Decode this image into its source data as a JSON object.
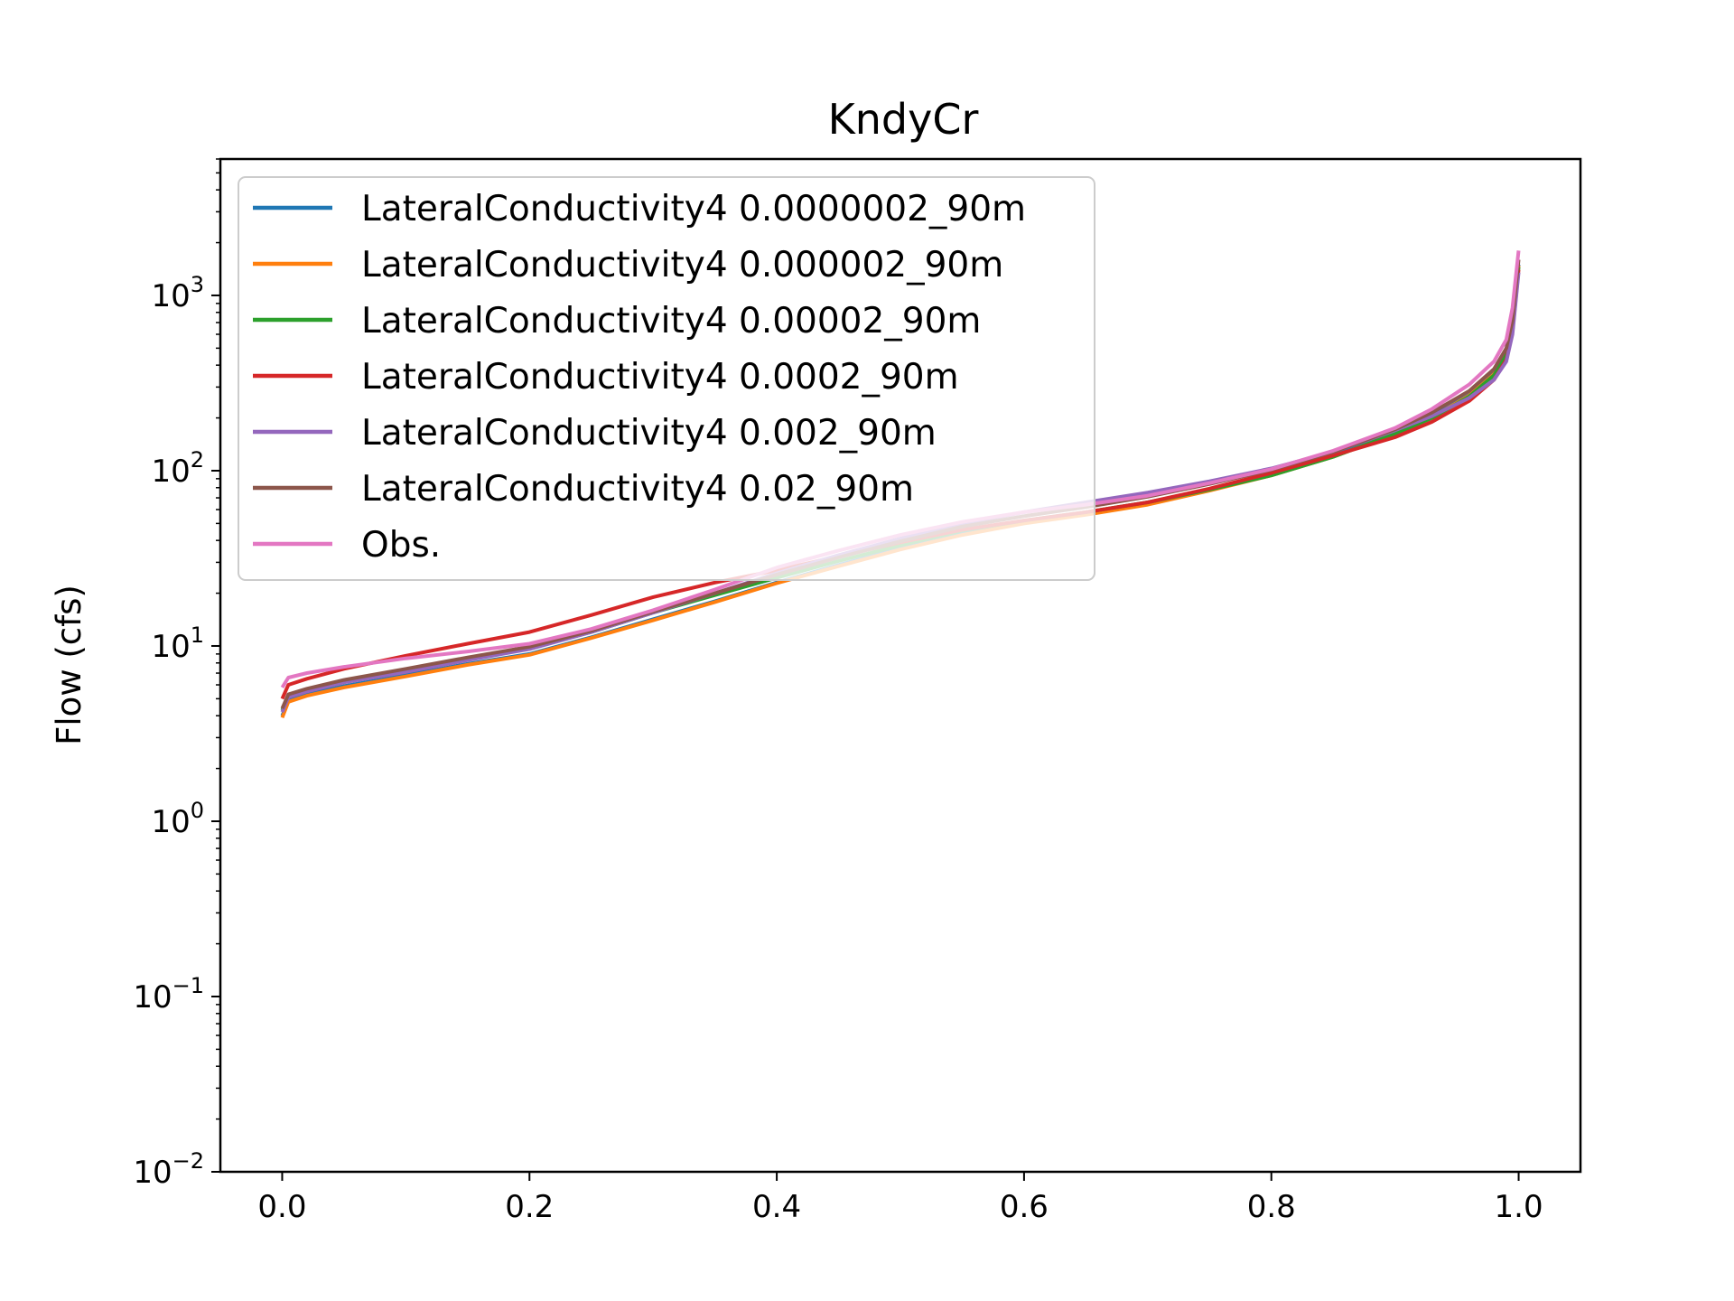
{
  "chart_data": {
    "type": "line",
    "title": "KndyCr",
    "xlabel": "",
    "ylabel": "Flow (cfs)",
    "xlim": [
      -0.05,
      1.05
    ],
    "ylim": [
      0.01,
      6000
    ],
    "yscale": "log",
    "grid": false,
    "legend_position": "top-left",
    "xticks": [
      0.0,
      0.2,
      0.4,
      0.6,
      0.8,
      1.0
    ],
    "xtick_labels": [
      "0.0",
      "0.2",
      "0.4",
      "0.6",
      "0.8",
      "1.0"
    ],
    "yticks": [
      {
        "value": 0.01,
        "base": "10",
        "exp": "−2"
      },
      {
        "value": 0.1,
        "base": "10",
        "exp": "−1"
      },
      {
        "value": 1,
        "base": "10",
        "exp": "0"
      },
      {
        "value": 10,
        "base": "10",
        "exp": "1"
      },
      {
        "value": 100,
        "base": "10",
        "exp": "2"
      },
      {
        "value": 1000,
        "base": "10",
        "exp": "3"
      }
    ],
    "series": [
      {
        "name": "LateralConductivity4 0.0000002_90m",
        "color": "#1f77b4",
        "x": [
          0,
          0.005,
          0.02,
          0.05,
          0.1,
          0.15,
          0.2,
          0.25,
          0.3,
          0.35,
          0.4,
          0.45,
          0.5,
          0.55,
          0.6,
          0.65,
          0.7,
          0.75,
          0.8,
          0.85,
          0.9,
          0.93,
          0.96,
          0.98,
          0.99,
          0.995,
          1.0
        ],
        "y": [
          4.0,
          4.9,
          5.3,
          5.9,
          6.8,
          7.9,
          9.0,
          11.2,
          14.2,
          18.0,
          23.0,
          29.0,
          36.0,
          44.0,
          51.0,
          57.0,
          65.0,
          78.0,
          95.0,
          122.0,
          165.0,
          205.0,
          270.0,
          360.0,
          480.0,
          700.0,
          1500.0
        ]
      },
      {
        "name": "LateralConductivity4 0.000002_90m",
        "color": "#ff7f0e",
        "x": [
          0,
          0.005,
          0.02,
          0.05,
          0.1,
          0.15,
          0.2,
          0.25,
          0.3,
          0.35,
          0.4,
          0.45,
          0.5,
          0.55,
          0.6,
          0.65,
          0.7,
          0.75,
          0.8,
          0.85,
          0.9,
          0.93,
          0.96,
          0.98,
          0.99,
          0.995,
          1.0
        ],
        "y": [
          3.9,
          4.8,
          5.2,
          5.8,
          6.7,
          7.8,
          8.9,
          11.1,
          14.0,
          17.8,
          22.8,
          28.5,
          35.5,
          43.0,
          50.0,
          56.0,
          64.0,
          77.0,
          94.0,
          120.0,
          162.0,
          202.0,
          268.0,
          355.0,
          470.0,
          690.0,
          1480.0
        ]
      },
      {
        "name": "LateralConductivity4 0.00002_90m",
        "color": "#2ca02c",
        "x": [
          0,
          0.005,
          0.02,
          0.05,
          0.1,
          0.15,
          0.2,
          0.25,
          0.3,
          0.35,
          0.4,
          0.45,
          0.5,
          0.55,
          0.6,
          0.65,
          0.7,
          0.75,
          0.8,
          0.85,
          0.9,
          0.93,
          0.96,
          0.98,
          0.99,
          0.995,
          1.0
        ],
        "y": [
          4.3,
          5.2,
          5.6,
          6.3,
          7.3,
          8.5,
          9.7,
          12.0,
          15.5,
          19.5,
          24.5,
          30.5,
          37.5,
          45.5,
          52.0,
          58.0,
          66.0,
          78.0,
          94.0,
          120.0,
          162.0,
          200.0,
          265.0,
          350.0,
          460.0,
          680.0,
          1450.0
        ]
      },
      {
        "name": "LateralConductivity4 0.0002_90m",
        "color": "#d62728",
        "x": [
          0,
          0.005,
          0.02,
          0.05,
          0.1,
          0.15,
          0.2,
          0.25,
          0.3,
          0.35,
          0.4,
          0.45,
          0.5,
          0.55,
          0.6,
          0.65,
          0.7,
          0.75,
          0.8,
          0.85,
          0.9,
          0.93,
          0.96,
          0.98,
          0.99,
          0.995,
          1.0
        ],
        "y": [
          5.0,
          6.0,
          6.5,
          7.4,
          8.8,
          10.3,
          12.0,
          15.0,
          19.0,
          23.0,
          27.0,
          32.5,
          39.0,
          46.0,
          52.0,
          58.0,
          66.0,
          79.0,
          97.0,
          122.0,
          155.0,
          190.0,
          250.0,
          330.0,
          430.0,
          620.0,
          1400.0
        ]
      },
      {
        "name": "LateralConductivity4 0.002_90m",
        "color": "#9467bd",
        "x": [
          0,
          0.005,
          0.02,
          0.05,
          0.1,
          0.15,
          0.2,
          0.25,
          0.3,
          0.35,
          0.4,
          0.45,
          0.5,
          0.55,
          0.6,
          0.65,
          0.7,
          0.75,
          0.8,
          0.85,
          0.9,
          0.93,
          0.96,
          0.98,
          0.99,
          0.995,
          1.0
        ],
        "y": [
          4.2,
          5.1,
          5.5,
          6.2,
          7.1,
          8.3,
          9.6,
          12.0,
          15.5,
          20.0,
          26.0,
          33.0,
          41.0,
          50.0,
          58.0,
          66.0,
          75.0,
          87.0,
          103.0,
          128.0,
          170.0,
          205.0,
          260.0,
          330.0,
          420.0,
          600.0,
          1350.0
        ]
      },
      {
        "name": "LateralConductivity4 0.02_90m",
        "color": "#8c564b",
        "x": [
          0,
          0.005,
          0.02,
          0.05,
          0.1,
          0.15,
          0.2,
          0.25,
          0.3,
          0.35,
          0.4,
          0.45,
          0.5,
          0.55,
          0.6,
          0.65,
          0.7,
          0.75,
          0.8,
          0.85,
          0.9,
          0.93,
          0.96,
          0.98,
          0.99,
          0.995,
          1.0
        ],
        "y": [
          4.4,
          5.3,
          5.7,
          6.4,
          7.4,
          8.6,
          9.9,
          12.2,
          15.7,
          20.0,
          25.5,
          32.0,
          39.5,
          48.0,
          55.0,
          62.0,
          71.0,
          84.0,
          101.0,
          128.0,
          172.0,
          215.0,
          285.0,
          380.0,
          500.0,
          720.0,
          1600.0
        ]
      },
      {
        "name": "Obs.",
        "color": "#e377c2",
        "x": [
          0,
          0.005,
          0.02,
          0.05,
          0.1,
          0.15,
          0.2,
          0.25,
          0.3,
          0.35,
          0.4,
          0.45,
          0.5,
          0.55,
          0.6,
          0.65,
          0.7,
          0.75,
          0.8,
          0.85,
          0.9,
          0.93,
          0.96,
          0.98,
          0.99,
          0.995,
          1.0
        ],
        "y": [
          5.8,
          6.6,
          7.0,
          7.6,
          8.5,
          9.3,
          10.3,
          12.5,
          16.0,
          21.0,
          28.0,
          35.0,
          43.0,
          51.0,
          58.0,
          64.0,
          72.0,
          85.0,
          102.0,
          130.0,
          175.0,
          225.0,
          310.0,
          420.0,
          560.0,
          850.0,
          1800.0
        ]
      }
    ]
  }
}
